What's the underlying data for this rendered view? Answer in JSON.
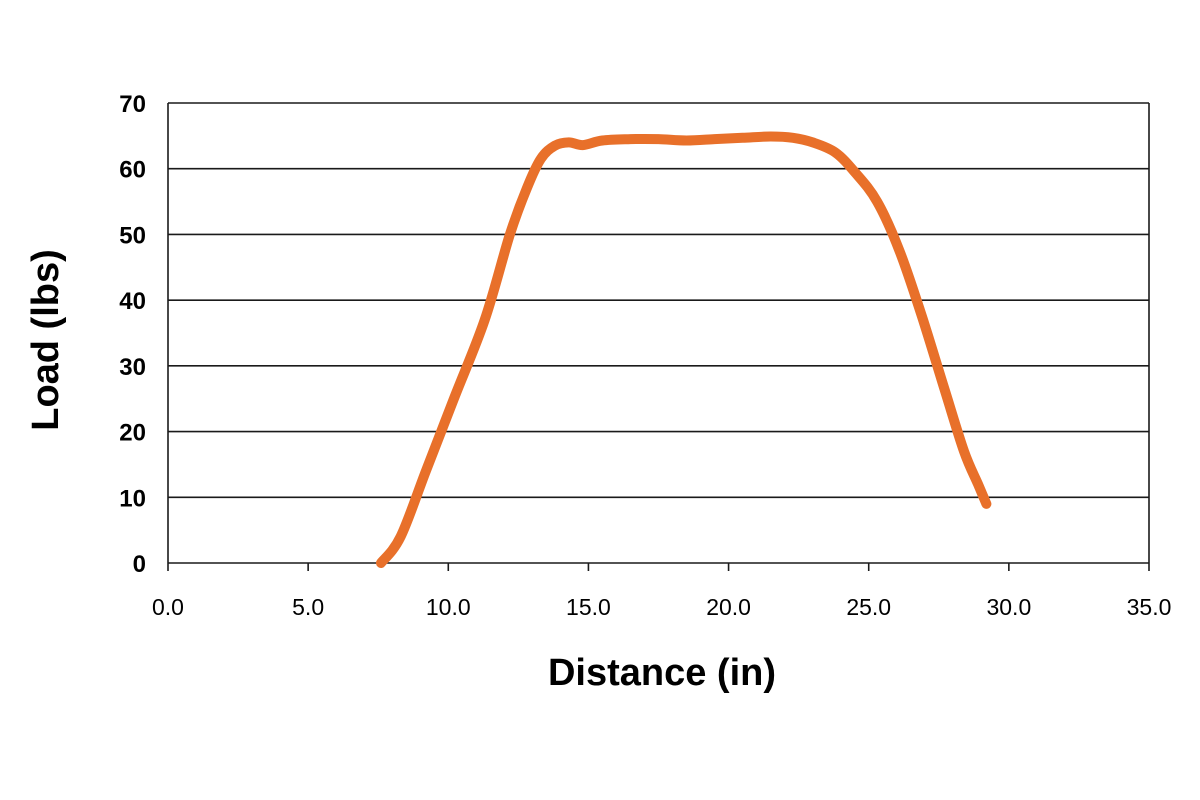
{
  "chart_data": {
    "type": "line",
    "title": "",
    "xlabel": "Distance (in)",
    "ylabel": "Load (lbs)",
    "xlim": [
      0,
      35
    ],
    "ylim": [
      0,
      70
    ],
    "x_ticks": [
      "0.0",
      "5.0",
      "10.0",
      "15.0",
      "20.0",
      "25.0",
      "30.0",
      "35.0"
    ],
    "y_ticks": [
      "0",
      "10",
      "20",
      "30",
      "40",
      "50",
      "60",
      "70"
    ],
    "grid": "horizontal",
    "legend": "none",
    "series": [
      {
        "color": "#E8702A",
        "x": [
          7.6,
          8.3,
          9.2,
          10.2,
          11.3,
          12.2,
          12.8,
          13.3,
          13.8,
          14.3,
          14.8,
          15.5,
          16.5,
          17.5,
          18.5,
          19.5,
          20.5,
          21.5,
          22.3,
          23.0,
          23.8,
          24.5,
          25.3,
          26.1,
          26.9,
          27.7,
          28.4,
          28.9,
          29.2
        ],
        "y": [
          0,
          4,
          14,
          25,
          37,
          50,
          57,
          61.5,
          63.5,
          64.0,
          63.6,
          64.3,
          64.5,
          64.5,
          64.3,
          64.5,
          64.7,
          64.9,
          64.7,
          64.0,
          62.5,
          59.5,
          55.0,
          47.5,
          37.5,
          26.5,
          17.0,
          12.0,
          9.0
        ]
      }
    ]
  }
}
